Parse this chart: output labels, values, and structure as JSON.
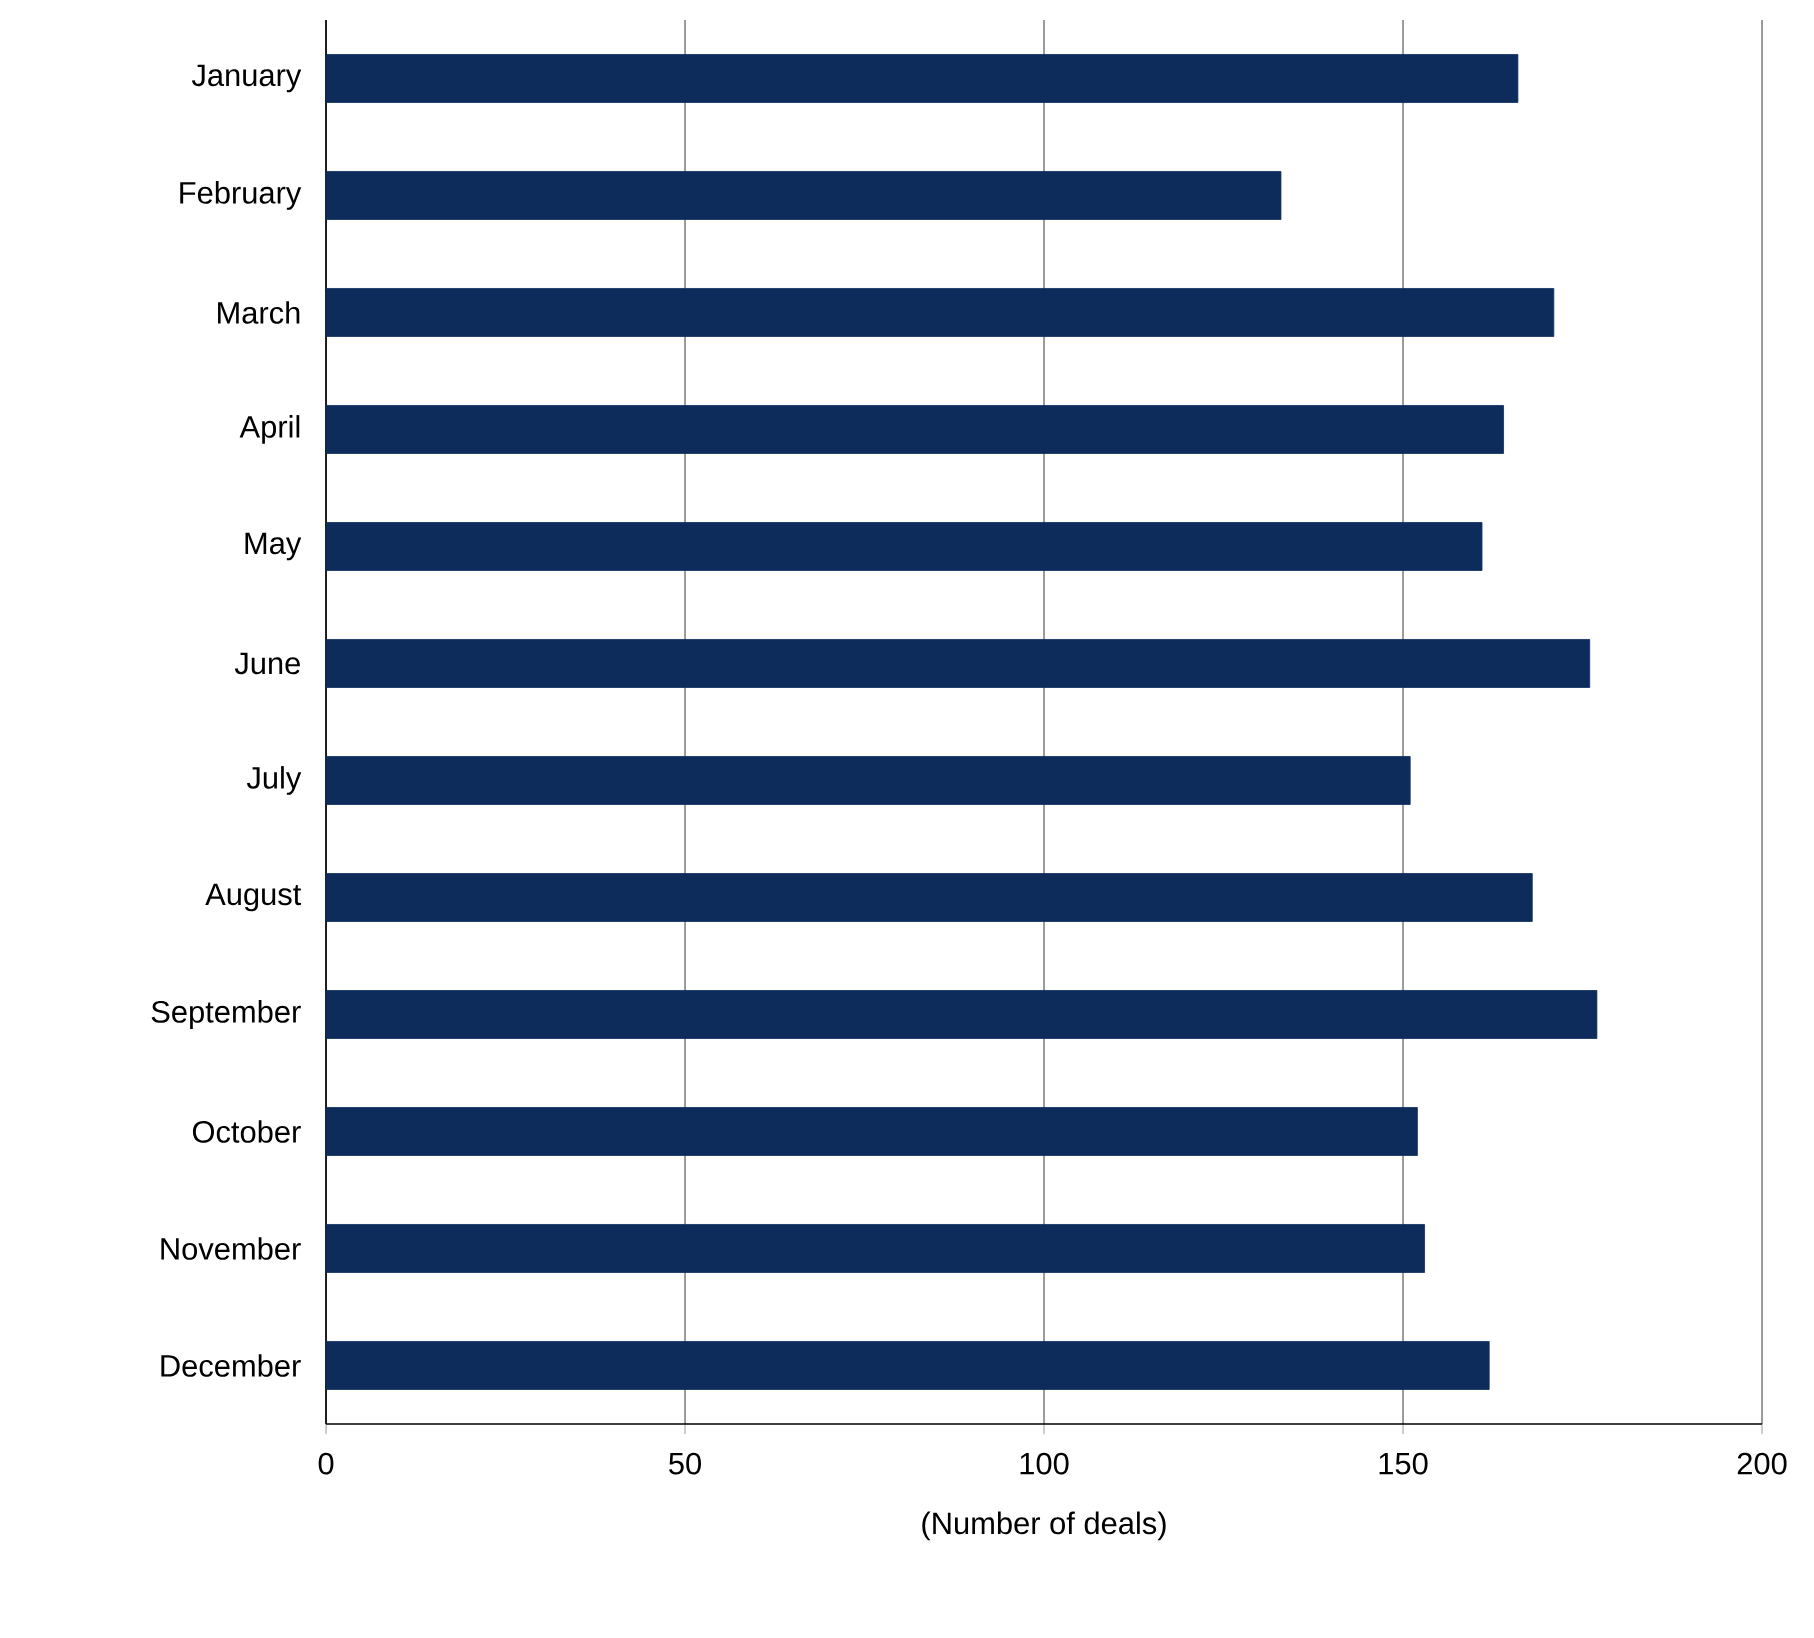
{
  "chart_data": {
    "type": "bar",
    "orientation": "horizontal",
    "xlabel": "(Number of deals)",
    "categories": [
      "January",
      "February",
      "March",
      "April",
      "May",
      "June",
      "July",
      "August",
      "September",
      "October",
      "November",
      "December"
    ],
    "values": [
      166,
      133,
      171,
      164,
      161,
      176,
      151,
      168,
      177,
      152,
      153,
      162
    ],
    "color": "#0d2c5c",
    "xlim": [
      0,
      200
    ],
    "xticks": [
      0,
      50,
      100,
      150,
      200
    ],
    "grid": "x"
  }
}
